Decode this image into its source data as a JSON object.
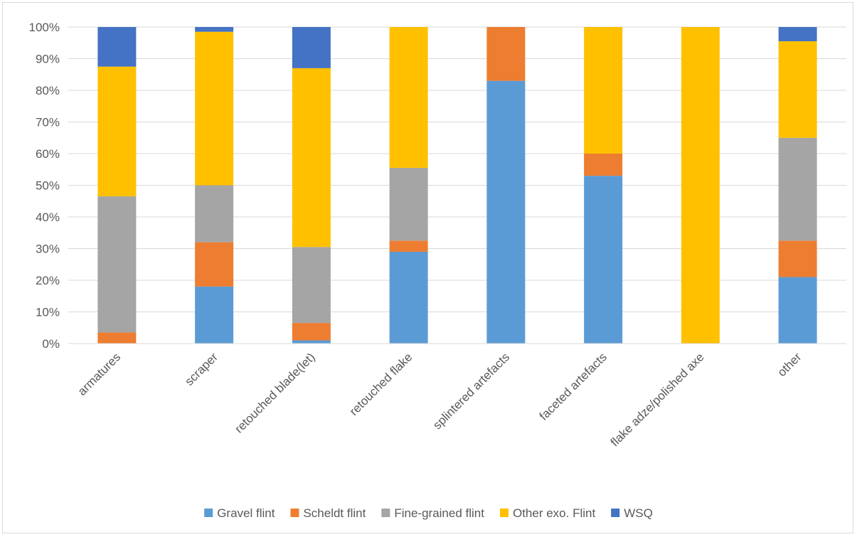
{
  "chart_data": {
    "type": "bar",
    "stacked": true,
    "percent_stacked": true,
    "categories": [
      "armatures",
      "scraper",
      "retouched blade(let)",
      "retouched flake",
      "splintered artefacts",
      "faceted artefacts",
      "flake adze/polished axe",
      "other"
    ],
    "series": [
      {
        "name": "Gravel flint",
        "color": "#5B9BD5",
        "values": [
          0,
          18,
          1,
          29,
          83,
          53,
          0,
          21
        ]
      },
      {
        "name": "Scheldt flint",
        "color": "#ED7D31",
        "values": [
          3.5,
          14,
          5.5,
          3.5,
          17,
          7,
          0,
          11.5
        ]
      },
      {
        "name": "Fine-grained flint",
        "color": "#A5A5A5",
        "values": [
          43,
          18,
          24,
          23,
          0,
          0,
          0,
          32.5
        ]
      },
      {
        "name": "Other exo. Flint",
        "color": "#FFC000",
        "values": [
          41,
          48.5,
          56.5,
          44.5,
          0,
          40,
          100,
          30.5
        ]
      },
      {
        "name": "WSQ",
        "color": "#4472C4",
        "values": [
          12.5,
          1.5,
          13,
          0,
          0,
          0,
          0,
          4.5
        ]
      }
    ],
    "yticks": [
      "0%",
      "10%",
      "20%",
      "30%",
      "40%",
      "50%",
      "60%",
      "70%",
      "80%",
      "90%",
      "100%"
    ],
    "ylim": [
      0,
      100
    ],
    "grid": true,
    "legend_position": "bottom"
  }
}
